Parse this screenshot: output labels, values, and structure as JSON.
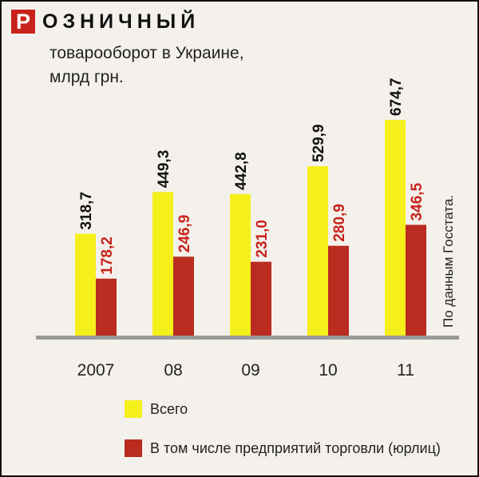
{
  "header": {
    "initial": "Р",
    "title_rest": "ОЗНИЧНЫЙ",
    "subtitle_line1": "товарооборот в Украине,",
    "subtitle_line2": "млрд грн."
  },
  "source_note": "По данным Госстата.",
  "colors": {
    "total": "#f5ef1c",
    "retail": "#b92c1f",
    "axis": "#9a9a9a",
    "total_label": "#111111",
    "retail_label": "#c8231b"
  },
  "chart_data": {
    "type": "bar",
    "categories": [
      "2007",
      "08",
      "09",
      "10",
      "11"
    ],
    "series": [
      {
        "name": "Всего",
        "values": [
          318.7,
          449.3,
          442.8,
          529.9,
          674.7
        ],
        "labels": [
          "318,7",
          "449,3",
          "442,8",
          "529,9",
          "674,7"
        ]
      },
      {
        "name": "В том числе предприятий торговли (юрлиц)",
        "values": [
          178.2,
          246.9,
          231.0,
          280.9,
          346.5
        ],
        "labels": [
          "178,2",
          "246,9",
          "231,0",
          "280,9",
          "346,5"
        ]
      }
    ],
    "ylim": [
      0,
      700
    ],
    "grid": false,
    "legend_position": "bottom-left"
  }
}
